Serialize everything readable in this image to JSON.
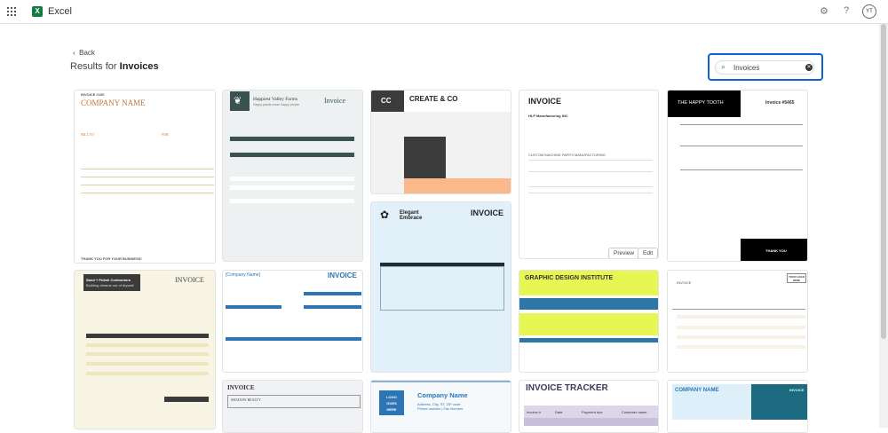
{
  "app": {
    "name": "Excel",
    "user_initials": "YT"
  },
  "nav": {
    "back_label": "Back",
    "results_prefix": "Results for",
    "results_query": "Invoices"
  },
  "search": {
    "value": "Invoices"
  },
  "colors": {
    "accent": "#0f62d6",
    "excel_green": "#107c41"
  },
  "templates": [
    {
      "title": "COMPANY NAME",
      "header": "INVOICE #100",
      "bill_to": "BILL TO",
      "for": "FOR",
      "footer": "THANK YOU FOR YOUR BUSINESS!"
    },
    {
      "title": "Happiest Valley Farms",
      "subtitle": "Happy plants mean happy people",
      "heading": "Invoice"
    },
    {
      "title": "CREATE & CO",
      "logo": "CC"
    },
    {
      "title": "INVOICE",
      "company": "HLP Manufacturing INC",
      "section": "CUSTOM MACHINE PARTS MANUFACTURING",
      "preview_label": "Preview",
      "edit_label": "Edit"
    },
    {
      "title": "THE HAPPY TOOTH",
      "heading": "Invoice #5465",
      "footer": "THANK YOU"
    },
    {
      "title": "Sand + Polish Contractors",
      "subtitle": "Building dreams out of drywall",
      "heading": "INVOICE"
    },
    {
      "title": "[Company Name]",
      "heading": "INVOICE"
    },
    {
      "title": "Elegant Embrace",
      "heading": "INVOICE"
    },
    {
      "title": "GRAPHIC DESIGN INSTITUTE"
    },
    {
      "title": "YOUR LOGO HERE",
      "heading": "INVOICE"
    },
    {
      "title": "INVOICE",
      "company": "SHADOW REALTY"
    },
    {
      "title": "Company Name",
      "logo": "LOGO GOES HERE",
      "subtitle": "Address, City, ST, ZIP code",
      "phone": "Phone number | Fax Number"
    },
    {
      "title": "INVOICE TRACKER",
      "columns": [
        "Invoice #",
        "Date",
        "Payment due",
        "Customer name"
      ]
    },
    {
      "title": "COMPANY NAME",
      "heading": "INVOICE"
    }
  ]
}
